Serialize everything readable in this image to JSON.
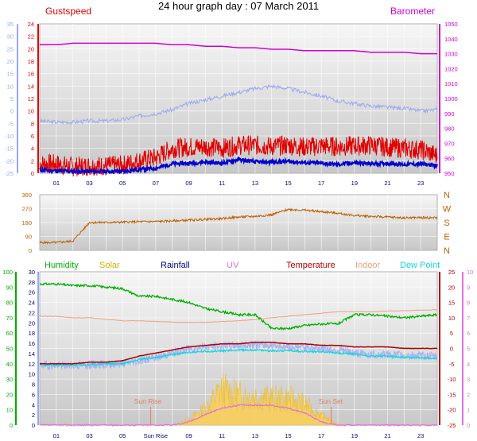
{
  "title": "24 hour graph day : 07 March 2011",
  "colors": {
    "gust": "#e00000",
    "wind": "#0000d0",
    "barometer": "#d000d0",
    "temp_outdoor": "#9aa8ee",
    "direction": "#c06000",
    "humidity": "#00b000",
    "solar_fill": "#f8d060",
    "solar_line": "#d0b000",
    "rainfall": "#000080",
    "uv": "#e070e0",
    "temperature": "#b00000",
    "indoor": "#f0a080",
    "dewpoint": "#10d8e0",
    "temp_band": "#a8b4f0",
    "sun_marker": "#e08060",
    "axis_left": "#9aa8ee",
    "axis_time": "#000080"
  },
  "chart_data": [
    {
      "type": "line",
      "panel": "wind-and-pressure",
      "x": [
        0,
        1,
        2,
        3,
        4,
        5,
        6,
        7,
        8,
        9,
        10,
        11,
        12,
        13,
        14,
        15,
        16,
        17,
        18,
        19,
        20,
        21,
        22,
        23,
        24
      ],
      "x_ticks": [
        "01",
        "03",
        "05",
        "07",
        "09",
        "11",
        "13",
        "15",
        "17",
        "19",
        "21",
        "23"
      ],
      "left_axis": {
        "ticks": [
          "35",
          "30",
          "25",
          "20",
          "15",
          "10",
          "5",
          "0",
          "-5",
          "-10",
          "-15",
          "-20",
          "-25"
        ],
        "ylim": [
          -25,
          35
        ]
      },
      "inner_axis": {
        "label": "Gustspeed",
        "ticks": [
          "24",
          "22",
          "20",
          "18",
          "16",
          "14",
          "12",
          "10",
          "8",
          "6",
          "4",
          "2",
          "0"
        ],
        "ylim": [
          0,
          24
        ]
      },
      "right_axis": {
        "label": "Barometer",
        "ticks": [
          "1050",
          "1040",
          "1030",
          "1020",
          "1010",
          "1000",
          "990",
          "980",
          "970",
          "960",
          "950"
        ],
        "ylim": [
          950,
          1050
        ]
      },
      "series": [
        {
          "name": "Barometer",
          "axis": "right",
          "values": [
            1036,
            1036,
            1037,
            1037,
            1037,
            1037,
            1037,
            1037,
            1036,
            1036,
            1035,
            1035,
            1034,
            1034,
            1033,
            1033,
            1032,
            1032,
            1032,
            1032,
            1031,
            1031,
            1031,
            1030,
            1030
          ]
        },
        {
          "axis": "left",
          "values": [
            -4,
            -4.5,
            -4.5,
            -4,
            -4,
            -3.5,
            -2,
            -1,
            0.5,
            3,
            4.5,
            6,
            7.5,
            9,
            10,
            9,
            7.5,
            6,
            4,
            3,
            2,
            1.5,
            1,
            0,
            0.5
          ]
        },
        {
          "name": "Gustspeed",
          "axis": "inner",
          "values": [
            1.5,
            1.5,
            1,
            1.2,
            1.2,
            1.3,
            2,
            2.5,
            4,
            4.2,
            4.3,
            4,
            4.5,
            4.5,
            4.3,
            4.5,
            4.2,
            4.4,
            4.3,
            4.4,
            4.5,
            4.2,
            4,
            3.8,
            2.8
          ]
        },
        {
          "axis": "inner",
          "values": [
            0.5,
            0.4,
            0.3,
            0.3,
            0.3,
            0.3,
            0.6,
            0.8,
            1.5,
            1.6,
            1.8,
            1.6,
            2.2,
            1.8,
            1.8,
            1.9,
            1.7,
            1.6,
            1.4,
            1.7,
            1.5,
            1.6,
            1.4,
            1.5,
            1.2
          ]
        }
      ]
    },
    {
      "type": "line",
      "panel": "wind-direction",
      "x": [
        0,
        1,
        2,
        3,
        4,
        5,
        6,
        7,
        8,
        9,
        10,
        11,
        12,
        13,
        14,
        15,
        16,
        17,
        18,
        19,
        20,
        21,
        22,
        23,
        24
      ],
      "x_ticks": [
        "01",
        "03",
        "05",
        "07",
        "09",
        "11",
        "13",
        "15",
        "17",
        "19",
        "21",
        "23"
      ],
      "left_axis": {
        "ticks": [
          "360",
          "270",
          "180",
          "90",
          "0"
        ],
        "ylim": [
          0,
          360
        ]
      },
      "right_axis": {
        "ticks": [
          "N",
          "W",
          "S",
          "E",
          "N"
        ]
      },
      "series": [
        {
          "values": [
            50,
            50,
            60,
            180,
            180,
            182,
            185,
            186,
            190,
            195,
            200,
            205,
            215,
            220,
            230,
            265,
            260,
            250,
            240,
            225,
            220,
            215,
            210,
            212,
            210
          ]
        }
      ]
    },
    {
      "type": "area",
      "panel": "temperature-humidity-solar",
      "x": [
        0,
        1,
        2,
        3,
        4,
        5,
        6,
        7,
        8,
        9,
        10,
        11,
        12,
        13,
        14,
        15,
        16,
        17,
        18,
        19,
        20,
        21,
        22,
        23,
        24
      ],
      "x_ticks": [
        "01",
        "03",
        "05",
        "Sun Rise",
        "09",
        "11",
        "13",
        "15",
        "17",
        "19",
        "21",
        "23"
      ],
      "legend": [
        "Humidity",
        "Solar",
        "Rainfall",
        "UV",
        "Temperature",
        "Indoor",
        "Dew Point"
      ],
      "humidity_axis": {
        "ticks": [
          "100",
          "90",
          "80",
          "70",
          "60",
          "50",
          "40",
          "30",
          "20",
          "10",
          "0"
        ],
        "ylim": [
          0,
          100
        ]
      },
      "solar_axis": {
        "ticks": [
          "30",
          "28",
          "26",
          "24",
          "22",
          "20",
          "18",
          "16",
          "14",
          "12",
          "10",
          "8",
          "6",
          "4",
          "2",
          "0"
        ],
        "ylim": [
          0,
          30
        ]
      },
      "temperature_axis": {
        "ticks": [
          "25",
          "20",
          "15",
          "10",
          "5",
          "0",
          "-5",
          "-10",
          "-15",
          "-20",
          "-25"
        ],
        "ylim": [
          -25,
          25
        ]
      },
      "uv_axis": {
        "ticks": [
          "10",
          "9",
          "8",
          "7",
          "6",
          "5",
          "4",
          "3",
          "2",
          "1",
          "0"
        ],
        "ylim": [
          0,
          10
        ]
      },
      "annotations": [
        "Sun Rise",
        "Sun Set"
      ],
      "series": [
        {
          "name": "Humidity",
          "axis": "humidity",
          "values": [
            92,
            92,
            91,
            91,
            90,
            89,
            84,
            84,
            82,
            80,
            76,
            74,
            72,
            72,
            63,
            63,
            65,
            66,
            66,
            72,
            72,
            71,
            70,
            71,
            72
          ]
        },
        {
          "name": "Dew Point",
          "axis": "temperature",
          "values": [
            -5.5,
            -5.5,
            -5.5,
            -5.3,
            -5,
            -5,
            -3.5,
            -3,
            -2,
            -1.3,
            -1,
            -0.8,
            -0.5,
            -0.5,
            -0.8,
            -0.7,
            -1,
            -1,
            -1.5,
            -1.8,
            -2.5,
            -2.5,
            -3,
            -3,
            -3.3
          ]
        },
        {
          "name": "Temperature",
          "axis": "temperature",
          "values": [
            -5,
            -5,
            -5,
            -4.5,
            -4.5,
            -4,
            -2.5,
            -1.5,
            -0.5,
            0.5,
            1,
            1.5,
            1.5,
            2,
            2,
            1.5,
            1.5,
            1,
            1,
            0.5,
            0.5,
            0.5,
            0,
            0,
            0
          ]
        },
        {
          "axis": "temperature",
          "values": [
            -5.5,
            -5.5,
            -5.5,
            -5.3,
            -5.2,
            -4.9,
            -4,
            -3,
            -1.5,
            0,
            0.5,
            0.8,
            1,
            1.2,
            1,
            0.5,
            0.5,
            0,
            -0.5,
            -1.5,
            -2,
            -2,
            -2.2,
            -2.3,
            -2.6
          ]
        },
        {
          "name": "Indoor",
          "axis": "temperature",
          "values": [
            10.5,
            10.5,
            10,
            10,
            9.5,
            9,
            9,
            8.8,
            8.6,
            8.5,
            8.5,
            8.8,
            9,
            9.4,
            10,
            10.5,
            11,
            11.5,
            12,
            12,
            12,
            12.2,
            12.3,
            12.5,
            12.6
          ]
        },
        {
          "name": "Solar",
          "axis": "solar",
          "values": [
            0,
            0,
            0,
            0,
            0,
            0,
            0,
            0,
            0,
            0.8,
            2.5,
            5.5,
            4.5,
            4.5,
            4,
            4,
            3.2,
            1.5,
            0.2,
            0,
            0,
            0,
            0,
            0,
            0
          ]
        },
        {
          "name": "UV",
          "axis": "uv",
          "values": [
            0,
            0,
            0,
            0,
            0,
            0,
            0,
            0,
            0,
            0.2,
            0.7,
            1.1,
            1.3,
            1.3,
            1.3,
            1.1,
            0.8,
            0.2,
            0,
            0,
            0,
            0,
            0,
            0,
            0
          ]
        }
      ]
    }
  ]
}
